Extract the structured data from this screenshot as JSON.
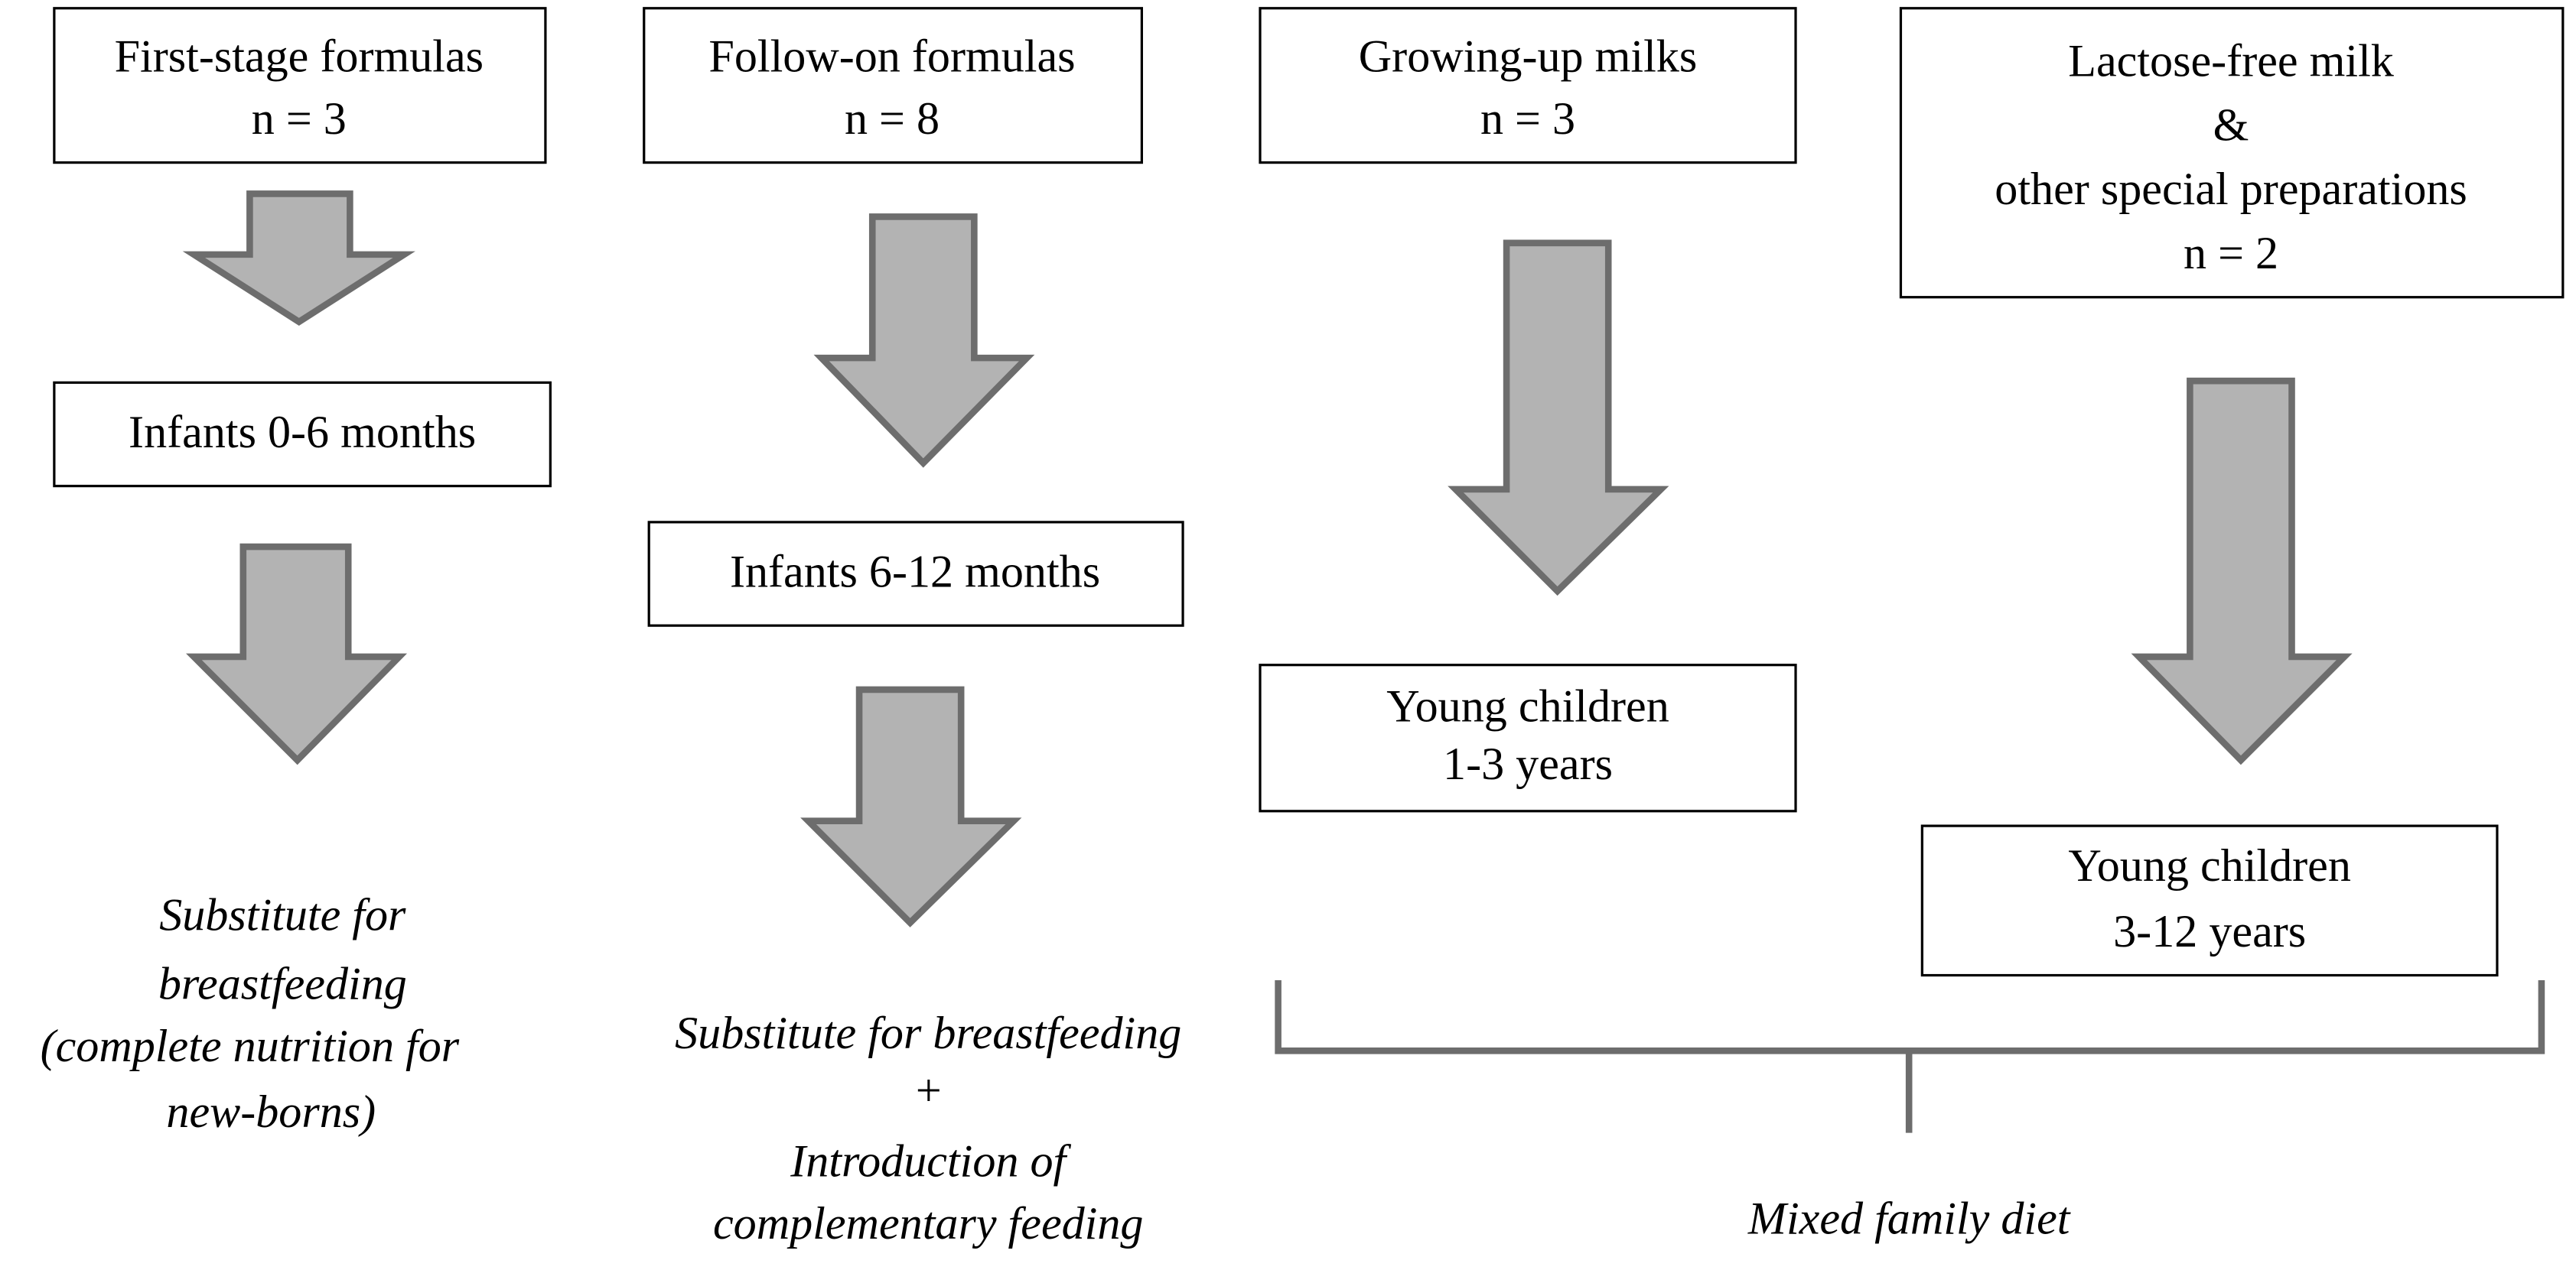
{
  "columns": [
    {
      "product": [
        "First-stage formulas",
        "n = 3"
      ],
      "age": [
        "Infants 0-6 months"
      ],
      "role": [
        "Substitute for",
        "breastfeeding",
        "(complete nutrition for",
        "new-borns)"
      ]
    },
    {
      "product": [
        "Follow-on formulas",
        "n = 8"
      ],
      "age": [
        "Infants 6-12 months"
      ],
      "role": [
        "Substitute for  breastfeeding",
        "+",
        "Introduction of",
        "complementary feeding"
      ]
    },
    {
      "product": [
        "Growing-up milks",
        "n = 3"
      ],
      "age": [
        "Young children",
        "1-3 years"
      ]
    },
    {
      "product": [
        "Lactose-free milk",
        "&",
        "other special preparations",
        "n = 2"
      ],
      "age": [
        "Young children",
        "3-12 years"
      ]
    }
  ],
  "shared_role": "Mixed family diet"
}
